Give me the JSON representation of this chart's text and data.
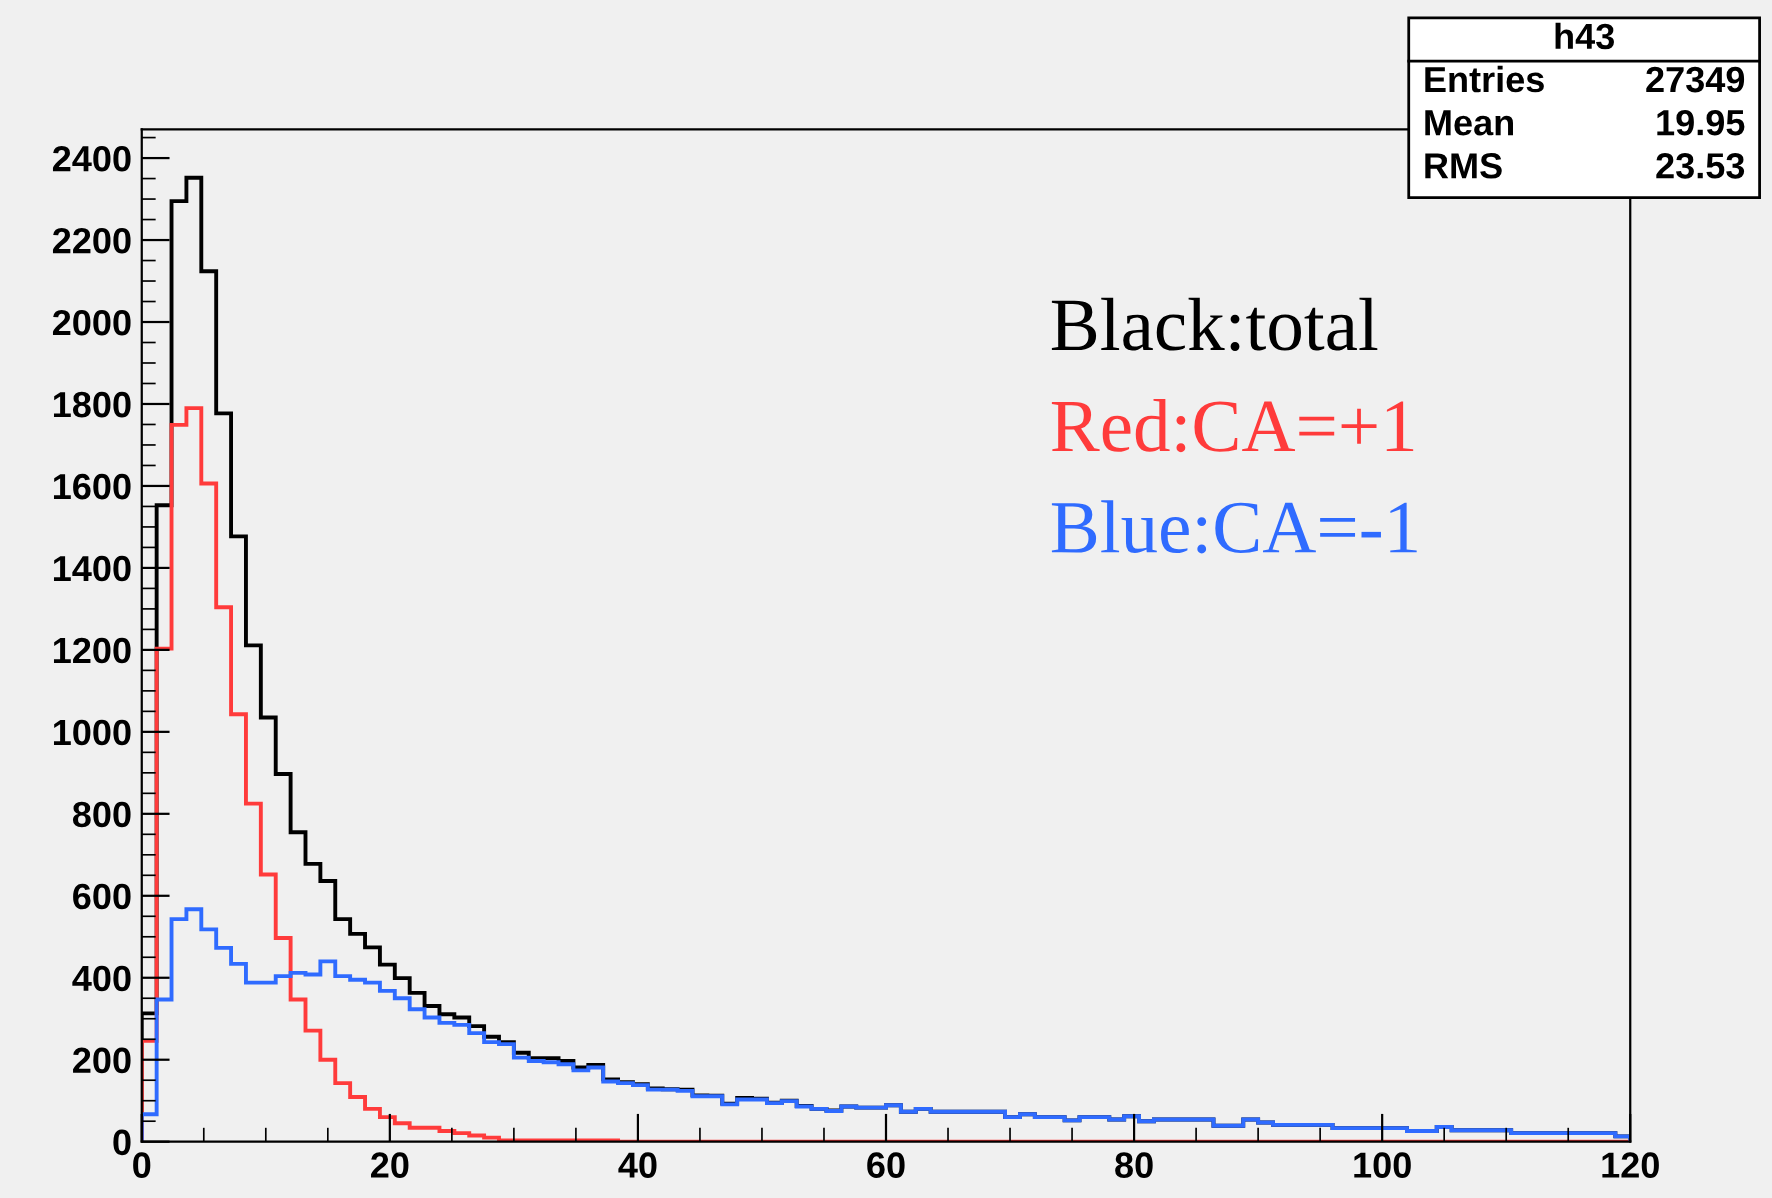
{
  "chart_data": {
    "type": "histogram",
    "bins": [
      0,
      1.2,
      2.4,
      3.6,
      4.8,
      6,
      7.2,
      8.4,
      9.6,
      10.8,
      12,
      13.2,
      14.4,
      15.6,
      16.8,
      18,
      19.2,
      20.4,
      21.6,
      22.8,
      24,
      25.2,
      26.4,
      27.6,
      28.8,
      30,
      31.2,
      32.4,
      33.6,
      34.8,
      36,
      37.2,
      38.4,
      39.6,
      40.8,
      42,
      43.2,
      44.4,
      45.6,
      46.8,
      48,
      49.2,
      50.4,
      51.6,
      52.8,
      54,
      55.2,
      56.4,
      57.6,
      58.8,
      60,
      61.2,
      62.4,
      63.6,
      64.8,
      66,
      67.2,
      68.4,
      69.6,
      70.8,
      72,
      73.2,
      74.4,
      75.6,
      76.8,
      78,
      79.2,
      80.4,
      81.6,
      82.8,
      84,
      85.2,
      86.4,
      87.6,
      88.8,
      90,
      91.2,
      92.4,
      93.6,
      94.8,
      96,
      97.2,
      98.4,
      99.6,
      100.8,
      102,
      103.2,
      104.4,
      105.6,
      106.8,
      108,
      109.2,
      110.4,
      111.6,
      112.8,
      114,
      115.2,
      116.4,
      117.6,
      118.8,
      120
    ],
    "series": [
      {
        "name": "Black:total",
        "color": "#000000",
        "values": [
          313,
          1553,
          2295,
          2352,
          2124,
          1777,
          1477,
          1211,
          1035,
          897,
          755,
          678,
          636,
          543,
          507,
          474,
          432,
          399,
          363,
          331,
          311,
          303,
          282,
          256,
          243,
          217,
          204,
          204,
          197,
          181,
          187,
          152,
          145,
          140,
          130,
          128,
          127,
          113,
          112,
          93,
          107,
          105,
          95,
          100,
          87,
          80,
          76,
          86,
          83,
          83,
          89,
          73,
          80,
          73,
          73,
          73,
          73,
          73,
          60,
          67,
          60,
          60,
          52,
          60,
          60,
          54,
          62,
          50,
          54,
          54,
          54,
          54,
          39,
          39,
          54,
          47,
          41,
          41,
          41,
          41,
          33,
          33,
          33,
          33,
          33,
          26,
          26,
          36,
          28,
          28,
          28,
          28,
          21,
          21,
          21,
          21,
          21,
          21,
          21,
          13
        ]
      },
      {
        "name": "Red:CA=+1",
        "color": "#ff3b3b",
        "values": [
          246,
          1203,
          1749,
          1790,
          1606,
          1304,
          1043,
          825,
          652,
          497,
          347,
          271,
          200,
          143,
          109,
          80,
          60,
          45,
          34,
          34,
          26,
          21,
          15,
          10,
          3,
          3,
          3,
          3,
          3,
          3,
          3,
          3,
          0,
          0,
          0,
          0,
          0,
          0,
          0,
          0,
          0,
          0,
          0,
          0,
          0,
          0,
          0,
          0,
          0,
          0,
          0,
          0,
          0,
          0,
          0,
          0,
          0,
          0,
          0,
          0,
          0,
          0,
          0,
          0,
          0,
          0,
          0,
          0,
          0,
          0,
          0,
          0,
          0,
          0,
          0,
          0,
          0,
          0,
          0,
          0,
          0,
          0,
          0,
          0,
          0,
          0,
          0,
          0,
          0,
          0,
          0,
          0,
          0,
          0,
          0,
          0,
          0,
          0,
          0,
          0
        ]
      },
      {
        "name": "Blue:CA=-1",
        "color": "#2f6bff",
        "values": [
          67,
          347,
          543,
          567,
          518,
          473,
          434,
          388,
          388,
          404,
          412,
          408,
          440,
          404,
          395,
          388,
          368,
          350,
          323,
          303,
          290,
          285,
          265,
          243,
          238,
          205,
          197,
          194,
          189,
          174,
          181,
          147,
          143,
          138,
          127,
          127,
          124,
          111,
          111,
          91,
          103,
          103,
          94,
          99,
          86,
          80,
          75,
          86,
          83,
          83,
          89,
          73,
          80,
          73,
          73,
          73,
          73,
          73,
          60,
          67,
          60,
          60,
          52,
          60,
          60,
          54,
          62,
          50,
          54,
          54,
          54,
          54,
          39,
          39,
          54,
          47,
          41,
          41,
          41,
          41,
          33,
          33,
          33,
          33,
          33,
          26,
          26,
          36,
          28,
          28,
          28,
          28,
          21,
          21,
          21,
          21,
          21,
          21,
          21,
          13
        ]
      }
    ],
    "xlim": [
      0,
      120
    ],
    "xticks": [
      0,
      20,
      40,
      60,
      80,
      100,
      120
    ],
    "ylim": [
      0,
      2470
    ],
    "yticks": [
      0,
      200,
      400,
      600,
      800,
      1000,
      1200,
      1400,
      1600,
      1800,
      2000,
      2200,
      2400
    ],
    "legend": "top right",
    "annotations": [
      "h43",
      "Entries",
      "27349",
      "Mean",
      "19.95",
      "RMS",
      "23.53"
    ]
  }
}
